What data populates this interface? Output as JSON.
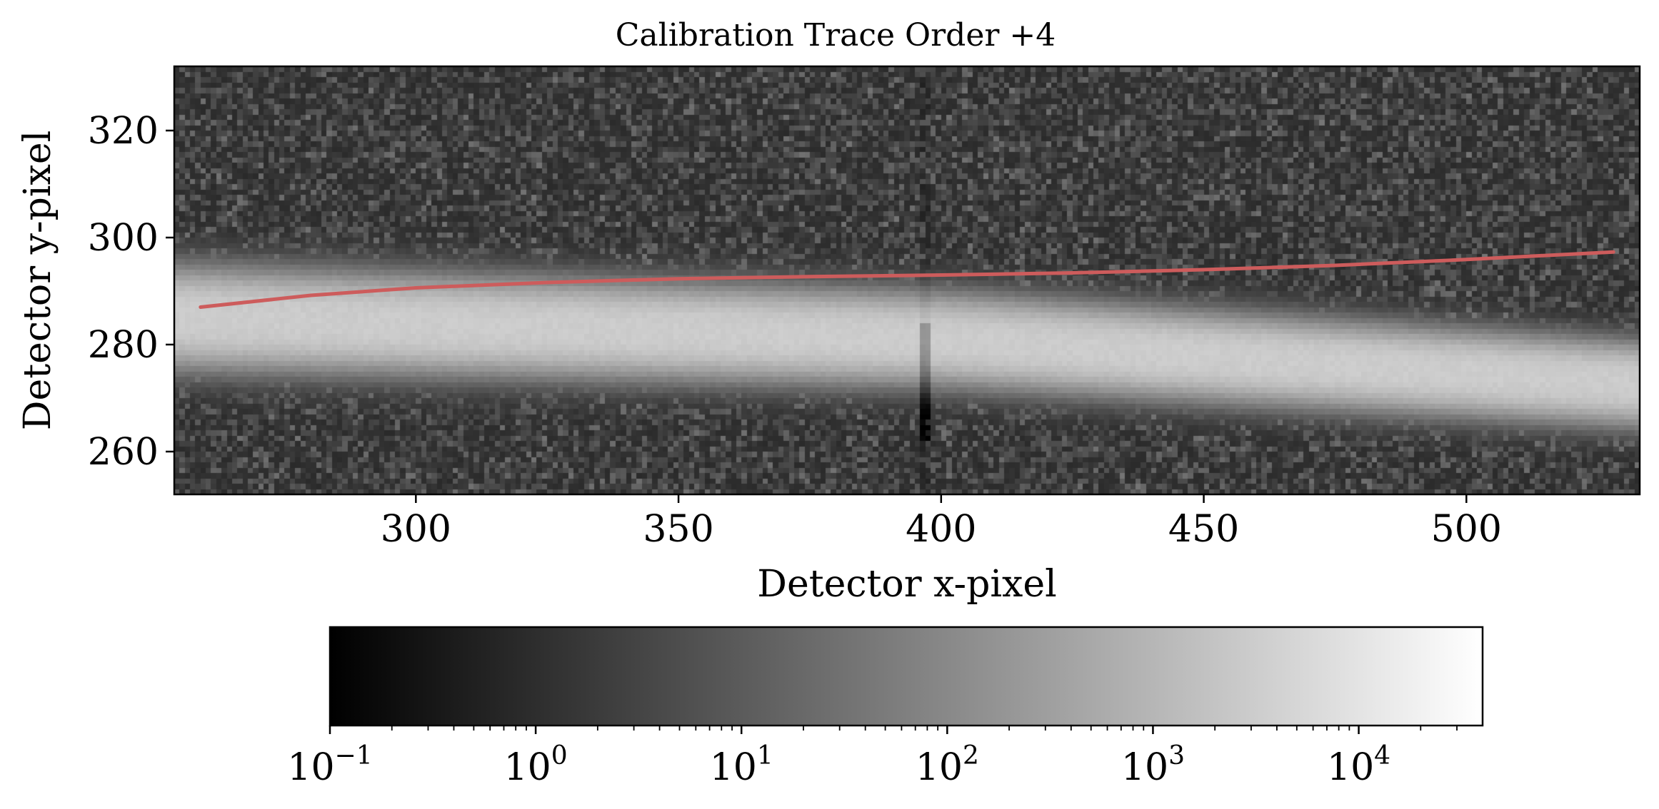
{
  "chart_data": [
    {
      "type": "heatmap",
      "title": "Calibration Trace Order +4",
      "xlabel": "Detector x-pixel",
      "ylabel": "Detector y-pixel",
      "xlim": [
        254,
        533
      ],
      "ylim": [
        252,
        332
      ],
      "xticks": [
        300,
        350,
        400,
        450,
        500
      ],
      "yticks": [
        260,
        280,
        300,
        320
      ],
      "colormap": "gray",
      "color_scale": "log",
      "grid": false,
      "image_model": {
        "background_level": 2,
        "noise_spread_decades": 1.3,
        "band_peak_level": 3000,
        "band_center_y": [
          [
            254,
            285
          ],
          [
            400,
            281
          ],
          [
            533,
            272.5
          ]
        ],
        "band_halfwidth_y": [
          [
            254,
            11
          ],
          [
            533,
            9
          ]
        ],
        "bad_column_x": 397
      },
      "series": [
        {
          "type": "line",
          "color": "#cd5c5c",
          "x": [
            259,
            280,
            300,
            325,
            350,
            375,
            400,
            425,
            450,
            475,
            500,
            528
          ],
          "y": [
            287.0,
            289.2,
            290.6,
            291.6,
            292.3,
            292.7,
            293.0,
            293.4,
            294.0,
            294.8,
            295.9,
            297.3
          ]
        }
      ]
    },
    {
      "type": "colorbar",
      "orientation": "horizontal",
      "colormap": "gray",
      "scale": "log",
      "range": [
        0.1,
        40000
      ],
      "tick_labels": [
        {
          "base": "10",
          "exp": "−1"
        },
        {
          "base": "10",
          "exp": "0"
        },
        {
          "base": "10",
          "exp": "1"
        },
        {
          "base": "10",
          "exp": "2"
        },
        {
          "base": "10",
          "exp": "3"
        },
        {
          "base": "10",
          "exp": "4"
        }
      ],
      "tick_values": [
        0.1,
        1,
        10,
        100,
        1000,
        10000
      ]
    }
  ]
}
